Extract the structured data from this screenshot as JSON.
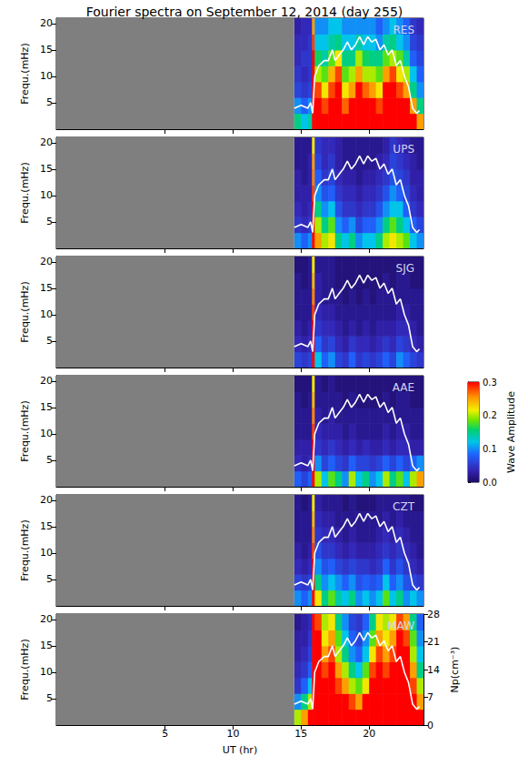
{
  "chart_data": {
    "type": "heatmap",
    "title": "Fourier spectra on September 12, 2014 (day 255)",
    "x_label": "UT (hr)",
    "y_label": "Frequ.(mHz)",
    "y2_label": "Np(cm⁻³)",
    "xlim": [
      -3,
      24
    ],
    "xticks": [
      5,
      10,
      15,
      20
    ],
    "ylim": [
      0,
      21
    ],
    "yticks": [
      5,
      10,
      15,
      20
    ],
    "y2lim": [
      0,
      28
    ],
    "y2ticks": [
      0,
      7,
      14,
      21,
      28
    ],
    "x_bins": [
      14.5,
      15,
      15.5,
      15.8,
      16,
      16.5,
      17,
      17.5,
      18,
      18.5,
      19,
      19.5,
      20,
      20.5,
      21,
      21.5,
      22,
      22.5,
      23,
      23.5,
      24
    ],
    "y_bins": [
      0,
      3,
      6,
      9,
      12,
      15,
      18,
      21
    ],
    "colorbar": {
      "label": "Wave Amplitude",
      "lim": [
        0,
        0.3
      ],
      "ticks": [
        {
          "value": 0,
          "label": "0.0"
        },
        0.1,
        0.2,
        0.3
      ]
    },
    "series": [
      {
        "type": "line",
        "axis": "y2",
        "color": "#ffffff",
        "x": [
          14.5,
          15,
          15.5,
          15.7,
          15.85,
          16,
          16.3,
          16.7,
          17,
          17.3,
          17.5,
          17.8,
          18.1,
          18.4,
          18.7,
          19,
          19.3,
          19.6,
          19.9,
          20.2,
          20.5,
          20.8,
          21.1,
          21.4,
          21.7,
          22,
          22.3,
          22.6,
          22.9,
          23.2,
          23.5,
          23.7
        ],
        "values": [
          5.3,
          6,
          5.3,
          6.7,
          4,
          13.3,
          16,
          17.3,
          17.3,
          20,
          17.3,
          18.7,
          20,
          22,
          20,
          21.3,
          23.3,
          21.3,
          23.3,
          22,
          22.7,
          20,
          21.3,
          18.7,
          20,
          16,
          17.3,
          13.3,
          10.7,
          5.3,
          4,
          4.7
        ]
      }
    ],
    "panels": [
      {
        "title": "RES",
        "cells": [
          [
            0.15,
            0.12,
            0.14,
            0.3,
            0.3,
            0.3,
            0.3,
            0.3,
            0.3,
            0.3,
            0.3,
            0.3,
            0.3,
            0.3,
            0.3,
            0.3,
            0.3,
            0.3,
            0.3,
            0.25
          ],
          [
            0.1,
            0.08,
            0.1,
            0.3,
            0.3,
            0.28,
            0.3,
            0.3,
            0.27,
            0.3,
            0.3,
            0.3,
            0.3,
            0.28,
            0.3,
            0.3,
            0.3,
            0.3,
            0.25,
            0.15
          ],
          [
            0.06,
            0.05,
            0.06,
            0.3,
            0.28,
            0.22,
            0.28,
            0.3,
            0.22,
            0.25,
            0.3,
            0.27,
            0.25,
            0.22,
            0.3,
            0.3,
            0.28,
            0.25,
            0.15,
            0.1
          ],
          [
            0.05,
            0.04,
            0.05,
            0.3,
            0.2,
            0.18,
            0.24,
            0.28,
            0.18,
            0.2,
            0.25,
            0.2,
            0.2,
            0.18,
            0.25,
            0.28,
            0.22,
            0.2,
            0.12,
            0.08
          ],
          [
            0.04,
            0.05,
            0.05,
            0.3,
            0.16,
            0.14,
            0.18,
            0.22,
            0.15,
            0.15,
            0.2,
            0.16,
            0.15,
            0.15,
            0.18,
            0.2,
            0.18,
            0.14,
            0.08,
            0.06
          ],
          [
            0.04,
            0.04,
            0.05,
            0.28,
            0.12,
            0.12,
            0.14,
            0.15,
            0.12,
            0.12,
            0.14,
            0.12,
            0.12,
            0.1,
            0.14,
            0.15,
            0.12,
            0.1,
            0.06,
            0.05
          ],
          [
            0.03,
            0.04,
            0.04,
            0.25,
            0.1,
            0.1,
            0.12,
            0.12,
            0.1,
            0.1,
            0.1,
            0.1,
            0.1,
            0.08,
            0.1,
            0.12,
            0.1,
            0.08,
            0.05,
            0.04
          ]
        ]
      },
      {
        "title": "UPS",
        "cells": [
          [
            0.1,
            0.08,
            0.1,
            0.3,
            0.25,
            0.2,
            0.22,
            0.15,
            0.12,
            0.15,
            0.1,
            0.12,
            0.12,
            0.15,
            0.2,
            0.22,
            0.2,
            0.18,
            0.12,
            0.1
          ],
          [
            0.05,
            0.04,
            0.05,
            0.3,
            0.2,
            0.15,
            0.18,
            0.1,
            0.08,
            0.1,
            0.06,
            0.08,
            0.08,
            0.1,
            0.15,
            0.18,
            0.15,
            0.12,
            0.08,
            0.06
          ],
          [
            0.04,
            0.03,
            0.04,
            0.3,
            0.15,
            0.1,
            0.12,
            0.07,
            0.05,
            0.05,
            0.04,
            0.05,
            0.05,
            0.07,
            0.1,
            0.12,
            0.12,
            0.08,
            0.05,
            0.04
          ],
          [
            0.03,
            0.03,
            0.03,
            0.28,
            0.1,
            0.07,
            0.08,
            0.05,
            0.04,
            0.04,
            0.03,
            0.04,
            0.04,
            0.05,
            0.07,
            0.1,
            0.08,
            0.06,
            0.04,
            0.03
          ],
          [
            0.03,
            0.02,
            0.03,
            0.26,
            0.08,
            0.05,
            0.06,
            0.04,
            0.03,
            0.03,
            0.02,
            0.03,
            0.03,
            0.04,
            0.05,
            0.07,
            0.06,
            0.05,
            0.03,
            0.03
          ],
          [
            0.02,
            0.02,
            0.03,
            0.25,
            0.06,
            0.04,
            0.05,
            0.03,
            0.02,
            0.02,
            0.02,
            0.02,
            0.02,
            0.03,
            0.04,
            0.06,
            0.05,
            0.04,
            0.03,
            0.02
          ],
          [
            0.02,
            0.02,
            0.02,
            0.22,
            0.05,
            0.04,
            0.04,
            0.03,
            0.02,
            0.02,
            0.02,
            0.02,
            0.02,
            0.02,
            0.03,
            0.05,
            0.04,
            0.03,
            0.02,
            0.02
          ]
        ]
      },
      {
        "title": "SJG",
        "cells": [
          [
            0.06,
            0.05,
            0.06,
            0.3,
            0.12,
            0.08,
            0.1,
            0.06,
            0.05,
            0.08,
            0.05,
            0.06,
            0.05,
            0.06,
            0.08,
            0.06,
            0.1,
            0.08,
            0.06,
            0.05
          ],
          [
            0.04,
            0.03,
            0.04,
            0.3,
            0.08,
            0.05,
            0.06,
            0.04,
            0.03,
            0.05,
            0.04,
            0.04,
            0.03,
            0.04,
            0.05,
            0.04,
            0.06,
            0.05,
            0.04,
            0.03
          ],
          [
            0.03,
            0.02,
            0.03,
            0.3,
            0.05,
            0.04,
            0.04,
            0.03,
            0.02,
            0.03,
            0.02,
            0.03,
            0.02,
            0.03,
            0.03,
            0.03,
            0.04,
            0.04,
            0.03,
            0.02
          ],
          [
            0.02,
            0.02,
            0.02,
            0.28,
            0.04,
            0.03,
            0.03,
            0.02,
            0.02,
            0.02,
            0.02,
            0.02,
            0.02,
            0.02,
            0.02,
            0.02,
            0.03,
            0.03,
            0.02,
            0.02
          ],
          [
            0.02,
            0.02,
            0.02,
            0.26,
            0.03,
            0.02,
            0.02,
            0.02,
            0.01,
            0.02,
            0.01,
            0.02,
            0.01,
            0.02,
            0.02,
            0.02,
            0.02,
            0.02,
            0.02,
            0.02
          ],
          [
            0.02,
            0.01,
            0.02,
            0.24,
            0.03,
            0.02,
            0.02,
            0.01,
            0.01,
            0.01,
            0.01,
            0.01,
            0.01,
            0.01,
            0.02,
            0.01,
            0.02,
            0.02,
            0.01,
            0.01
          ],
          [
            0.01,
            0.01,
            0.02,
            0.22,
            0.02,
            0.02,
            0.02,
            0.01,
            0.01,
            0.01,
            0.01,
            0.01,
            0.01,
            0.01,
            0.01,
            0.01,
            0.01,
            0.01,
            0.01,
            0.01
          ]
        ]
      },
      {
        "title": "AAE",
        "cells": [
          [
            0.08,
            0.06,
            0.08,
            0.3,
            0.2,
            0.12,
            0.18,
            0.15,
            0.1,
            0.2,
            0.12,
            0.15,
            0.1,
            0.12,
            0.2,
            0.15,
            0.18,
            0.12,
            0.2,
            0.25
          ],
          [
            0.04,
            0.03,
            0.04,
            0.3,
            0.1,
            0.06,
            0.08,
            0.06,
            0.05,
            0.08,
            0.06,
            0.06,
            0.05,
            0.06,
            0.08,
            0.06,
            0.08,
            0.06,
            0.08,
            0.1
          ],
          [
            0.03,
            0.03,
            0.03,
            0.3,
            0.05,
            0.04,
            0.05,
            0.04,
            0.03,
            0.04,
            0.03,
            0.04,
            0.03,
            0.03,
            0.04,
            0.03,
            0.04,
            0.04,
            0.03,
            0.03
          ],
          [
            0.02,
            0.02,
            0.02,
            0.28,
            0.04,
            0.03,
            0.03,
            0.03,
            0.02,
            0.03,
            0.02,
            0.02,
            0.02,
            0.02,
            0.03,
            0.02,
            0.03,
            0.03,
            0.02,
            0.02
          ],
          [
            0.02,
            0.02,
            0.02,
            0.26,
            0.03,
            0.02,
            0.03,
            0.02,
            0.02,
            0.02,
            0.02,
            0.02,
            0.02,
            0.02,
            0.02,
            0.02,
            0.02,
            0.02,
            0.02,
            0.02
          ],
          [
            0.02,
            0.01,
            0.02,
            0.24,
            0.02,
            0.02,
            0.02,
            0.02,
            0.01,
            0.02,
            0.01,
            0.01,
            0.01,
            0.01,
            0.02,
            0.01,
            0.02,
            0.02,
            0.01,
            0.01
          ],
          [
            0.01,
            0.01,
            0.01,
            0.22,
            0.02,
            0.01,
            0.02,
            0.01,
            0.01,
            0.01,
            0.01,
            0.01,
            0.01,
            0.01,
            0.01,
            0.01,
            0.01,
            0.01,
            0.01,
            0.01
          ]
        ]
      },
      {
        "title": "CZT",
        "cells": [
          [
            0.1,
            0.08,
            0.1,
            0.3,
            0.22,
            0.15,
            0.18,
            0.14,
            0.12,
            0.15,
            0.1,
            0.12,
            0.1,
            0.12,
            0.18,
            0.12,
            0.15,
            0.1,
            0.12,
            0.1
          ],
          [
            0.06,
            0.05,
            0.06,
            0.3,
            0.15,
            0.1,
            0.12,
            0.1,
            0.08,
            0.1,
            0.07,
            0.08,
            0.07,
            0.08,
            0.12,
            0.08,
            0.1,
            0.07,
            0.06,
            0.05
          ],
          [
            0.04,
            0.03,
            0.04,
            0.3,
            0.1,
            0.07,
            0.08,
            0.06,
            0.05,
            0.06,
            0.05,
            0.05,
            0.04,
            0.05,
            0.08,
            0.05,
            0.07,
            0.05,
            0.04,
            0.03
          ],
          [
            0.03,
            0.02,
            0.03,
            0.28,
            0.07,
            0.05,
            0.05,
            0.04,
            0.03,
            0.04,
            0.03,
            0.03,
            0.03,
            0.04,
            0.05,
            0.04,
            0.05,
            0.04,
            0.03,
            0.02
          ],
          [
            0.02,
            0.02,
            0.02,
            0.26,
            0.05,
            0.04,
            0.04,
            0.03,
            0.02,
            0.03,
            0.02,
            0.02,
            0.02,
            0.03,
            0.04,
            0.03,
            0.04,
            0.03,
            0.02,
            0.02
          ],
          [
            0.02,
            0.02,
            0.02,
            0.24,
            0.04,
            0.03,
            0.03,
            0.02,
            0.02,
            0.02,
            0.02,
            0.02,
            0.02,
            0.02,
            0.03,
            0.02,
            0.03,
            0.02,
            0.02,
            0.02
          ],
          [
            0.02,
            0.01,
            0.02,
            0.22,
            0.03,
            0.02,
            0.02,
            0.02,
            0.01,
            0.02,
            0.01,
            0.01,
            0.01,
            0.02,
            0.02,
            0.02,
            0.02,
            0.02,
            0.01,
            0.01
          ]
        ]
      },
      {
        "title": "MAW",
        "cells": [
          [
            0.2,
            0.25,
            0.3,
            0.3,
            0.3,
            0.3,
            0.3,
            0.3,
            0.3,
            0.3,
            0.3,
            0.3,
            0.3,
            0.3,
            0.3,
            0.3,
            0.3,
            0.3,
            0.3,
            0.3
          ],
          [
            0.1,
            0.15,
            0.2,
            0.3,
            0.3,
            0.3,
            0.3,
            0.3,
            0.3,
            0.28,
            0.25,
            0.3,
            0.3,
            0.3,
            0.3,
            0.3,
            0.3,
            0.3,
            0.3,
            0.25
          ],
          [
            0.05,
            0.08,
            0.12,
            0.3,
            0.3,
            0.3,
            0.3,
            0.28,
            0.25,
            0.2,
            0.18,
            0.22,
            0.3,
            0.3,
            0.3,
            0.3,
            0.3,
            0.3,
            0.28,
            0.2
          ],
          [
            0.04,
            0.05,
            0.08,
            0.3,
            0.3,
            0.28,
            0.3,
            0.25,
            0.2,
            0.15,
            0.12,
            0.18,
            0.28,
            0.3,
            0.28,
            0.3,
            0.3,
            0.3,
            0.25,
            0.15
          ],
          [
            0.03,
            0.04,
            0.06,
            0.3,
            0.3,
            0.25,
            0.28,
            0.2,
            0.15,
            0.1,
            0.08,
            0.12,
            0.22,
            0.28,
            0.25,
            0.28,
            0.3,
            0.3,
            0.2,
            0.12
          ],
          [
            0.03,
            0.03,
            0.05,
            0.3,
            0.3,
            0.22,
            0.25,
            0.18,
            0.12,
            0.08,
            0.06,
            0.1,
            0.18,
            0.25,
            0.22,
            0.25,
            0.3,
            0.28,
            0.18,
            0.1
          ],
          [
            0.02,
            0.03,
            0.04,
            0.3,
            0.28,
            0.2,
            0.22,
            0.15,
            0.1,
            0.06,
            0.05,
            0.08,
            0.15,
            0.22,
            0.2,
            0.22,
            0.28,
            0.25,
            0.15,
            0.08
          ]
        ]
      }
    ]
  }
}
